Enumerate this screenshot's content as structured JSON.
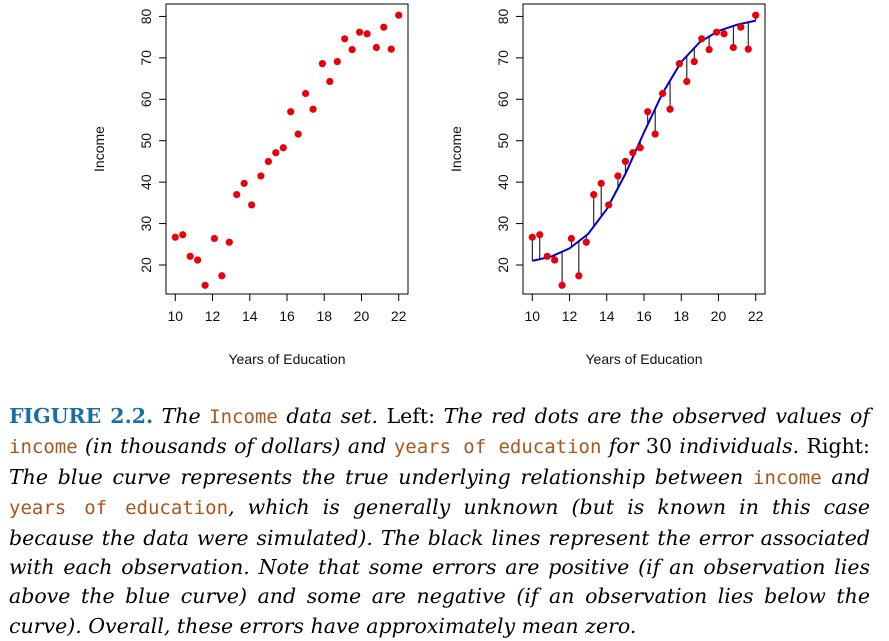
{
  "chart_data": [
    {
      "type": "scatter",
      "title": "",
      "xlabel": "Years of Education",
      "ylabel": "Income",
      "xlim": [
        9.5,
        22.5
      ],
      "ylim": [
        13,
        83
      ],
      "xticks": [
        10,
        12,
        14,
        16,
        18,
        20,
        22
      ],
      "yticks": [
        20,
        30,
        40,
        50,
        60,
        70,
        80
      ],
      "point_color": "#e8000b",
      "x": [
        10.0,
        10.4,
        10.8,
        11.2,
        11.6,
        12.1,
        12.5,
        12.9,
        13.3,
        13.7,
        14.1,
        14.6,
        15.0,
        15.4,
        15.8,
        16.2,
        16.6,
        17.0,
        17.4,
        17.9,
        18.3,
        18.7,
        19.1,
        19.5,
        19.9,
        20.3,
        20.8,
        21.2,
        21.6,
        22.0
      ],
      "y": [
        26.7,
        27.3,
        22.1,
        21.2,
        15.1,
        26.4,
        17.4,
        25.5,
        37.0,
        39.7,
        34.5,
        41.5,
        45.0,
        47.1,
        48.3,
        57.0,
        51.6,
        61.4,
        57.6,
        68.6,
        64.3,
        69.1,
        74.6,
        72.0,
        76.2,
        75.8,
        72.5,
        77.4,
        72.1,
        80.3
      ]
    },
    {
      "type": "scatter",
      "title": "",
      "xlabel": "Years of Education",
      "ylabel": "Income",
      "xlim": [
        9.5,
        22.5
      ],
      "ylim": [
        13,
        83
      ],
      "xticks": [
        10,
        12,
        14,
        16,
        18,
        20,
        22
      ],
      "yticks": [
        20,
        30,
        40,
        50,
        60,
        70,
        80
      ],
      "point_color": "#e8000b",
      "curve_color": "#0000cc",
      "residual_color": "#000000",
      "x": [
        10.0,
        10.4,
        10.8,
        11.2,
        11.6,
        12.1,
        12.5,
        12.9,
        13.3,
        13.7,
        14.1,
        14.6,
        15.0,
        15.4,
        15.8,
        16.2,
        16.6,
        17.0,
        17.4,
        17.9,
        18.3,
        18.7,
        19.1,
        19.5,
        19.9,
        20.3,
        20.8,
        21.2,
        21.6,
        22.0
      ],
      "y": [
        26.7,
        27.3,
        22.1,
        21.2,
        15.1,
        26.4,
        17.4,
        25.5,
        37.0,
        39.7,
        34.5,
        41.5,
        45.0,
        47.1,
        48.3,
        57.0,
        51.6,
        61.4,
        57.6,
        68.6,
        64.3,
        69.1,
        74.6,
        72.0,
        76.2,
        75.8,
        72.5,
        77.4,
        72.1,
        80.3
      ],
      "curve": {
        "x": [
          10,
          11,
          12,
          13,
          14,
          15,
          16,
          17,
          18,
          19,
          20,
          21,
          22
        ],
        "y": [
          21.0,
          22.0,
          24.0,
          27.5,
          33.5,
          42.0,
          52.0,
          61.5,
          69.0,
          73.8,
          76.5,
          78.0,
          79.0
        ]
      }
    }
  ],
  "caption": {
    "label": "FIGURE 2.2.",
    "s1": "The",
    "c1": "Income",
    "s2": "data set.",
    "s3": "Left:",
    "s4": "The red dots are the observed values of",
    "c2": "income",
    "s5": "(in thousands of dollars) and",
    "c3": "years of education",
    "s6": "for",
    "s7": "30",
    "s8": "individuals.",
    "s9": "Right:",
    "s10": "The blue curve represents the true underlying relationship between",
    "c4": "income",
    "s11": "and",
    "c5": "years of education",
    "s12": ", which is generally unknown (but is known in this case because the data were simulated). The black lines represent the error associated with each observation. Note that some errors are positive (if an observation lies above the blue curve) and some are negative (if an observation lies below the curve). Overall, these errors have approximately mean zero."
  }
}
